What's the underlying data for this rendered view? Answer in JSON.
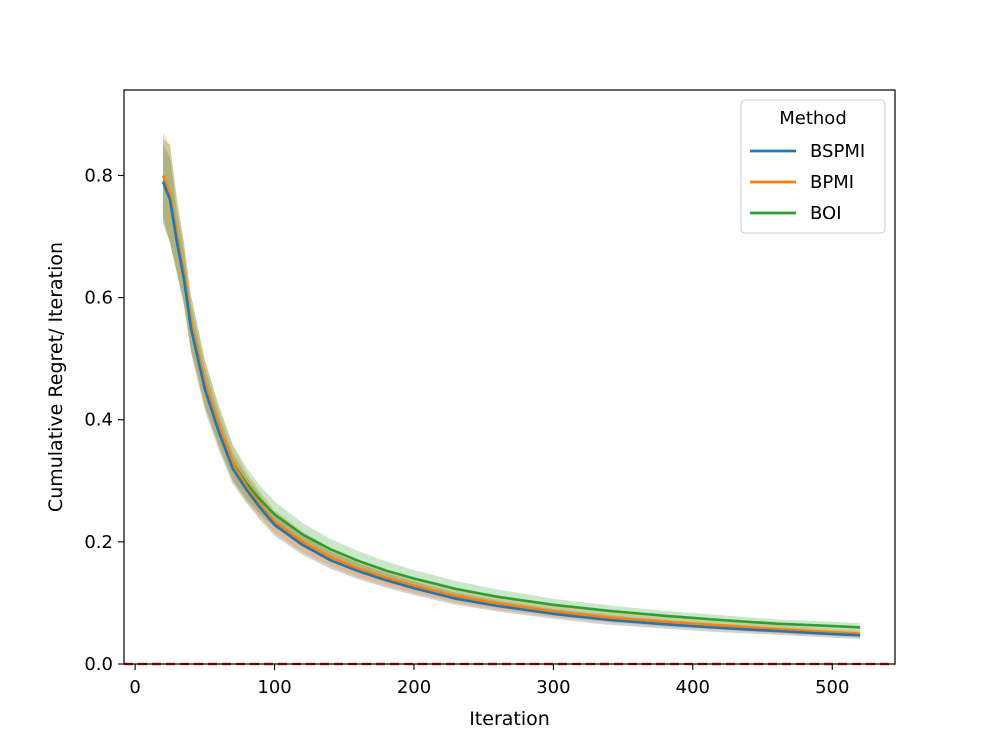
{
  "chart_data": {
    "type": "line",
    "title": "",
    "xlabel": "Iteration",
    "ylabel": "Cumulative Regret/ Iteration",
    "xlim": [
      -8,
      545
    ],
    "ylim": [
      0.0,
      0.94
    ],
    "xticks": [
      0,
      100,
      200,
      300,
      400,
      500
    ],
    "yticks": [
      0.0,
      0.2,
      0.4,
      0.6,
      0.8
    ],
    "xtick_labels": [
      "0",
      "100",
      "200",
      "300",
      "400",
      "500"
    ],
    "ytick_labels": [
      "0.0",
      "0.2",
      "0.4",
      "0.6",
      "0.8"
    ],
    "grid": false,
    "legend": {
      "title": "Method",
      "placement": "upper right",
      "entries": [
        "BSPMI",
        "BPMI",
        "BOI"
      ]
    },
    "reference_line": {
      "y": 0.0,
      "color": "#d62728",
      "style": "dashed"
    },
    "x": [
      20,
      25,
      30,
      35,
      40,
      50,
      60,
      70,
      80,
      90,
      100,
      120,
      140,
      160,
      180,
      200,
      230,
      260,
      300,
      340,
      380,
      420,
      460,
      500,
      520
    ],
    "series": [
      {
        "name": "BSPMI",
        "color": "#1f77b4",
        "values": [
          0.79,
          0.76,
          0.69,
          0.63,
          0.55,
          0.45,
          0.38,
          0.32,
          0.285,
          0.255,
          0.228,
          0.195,
          0.17,
          0.152,
          0.137,
          0.124,
          0.107,
          0.095,
          0.082,
          0.072,
          0.065,
          0.059,
          0.054,
          0.049,
          0.047
        ],
        "band": [
          0.06,
          0.07,
          0.05,
          0.045,
          0.04,
          0.035,
          0.03,
          0.025,
          0.022,
          0.02,
          0.018,
          0.016,
          0.014,
          0.013,
          0.012,
          0.011,
          0.01,
          0.009,
          0.008,
          0.008,
          0.007,
          0.007,
          0.006,
          0.006,
          0.006
        ]
      },
      {
        "name": "BPMI",
        "color": "#ff7f0e",
        "values": [
          0.8,
          0.77,
          0.7,
          0.64,
          0.56,
          0.46,
          0.39,
          0.33,
          0.29,
          0.26,
          0.233,
          0.2,
          0.175,
          0.156,
          0.141,
          0.128,
          0.111,
          0.099,
          0.086,
          0.076,
          0.069,
          0.063,
          0.057,
          0.052,
          0.05
        ],
        "band": [
          0.07,
          0.08,
          0.06,
          0.05,
          0.045,
          0.038,
          0.033,
          0.028,
          0.024,
          0.021,
          0.019,
          0.017,
          0.015,
          0.014,
          0.013,
          0.012,
          0.011,
          0.01,
          0.009,
          0.008,
          0.008,
          0.007,
          0.007,
          0.006,
          0.006
        ]
      },
      {
        "name": "BOI",
        "color": "#2ca02c",
        "values": [
          0.79,
          0.77,
          0.7,
          0.64,
          0.56,
          0.46,
          0.39,
          0.33,
          0.295,
          0.268,
          0.245,
          0.212,
          0.188,
          0.169,
          0.153,
          0.14,
          0.123,
          0.11,
          0.097,
          0.087,
          0.079,
          0.072,
          0.066,
          0.062,
          0.06
        ],
        "band": [
          0.07,
          0.08,
          0.06,
          0.05,
          0.045,
          0.038,
          0.033,
          0.03,
          0.026,
          0.023,
          0.021,
          0.019,
          0.017,
          0.016,
          0.015,
          0.014,
          0.013,
          0.012,
          0.01,
          0.009,
          0.008,
          0.008,
          0.007,
          0.007,
          0.007
        ]
      }
    ]
  }
}
